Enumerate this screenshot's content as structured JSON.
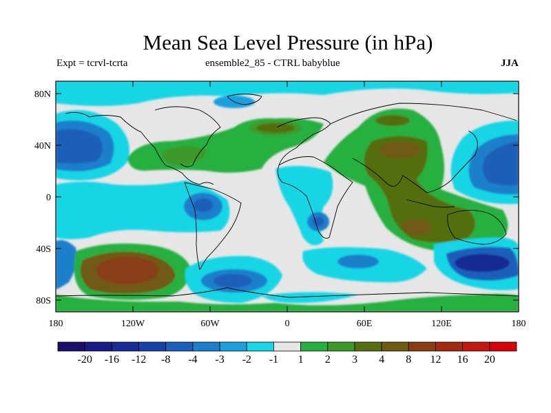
{
  "title": "Mean Sea Level Pressure (in hPa)",
  "subtitle_left": "Expt = tcrvl-tcrta",
  "subtitle_center": "ensemble2_85 - CTRL babyblue",
  "season": "JJA",
  "lat_labels": [
    "80N",
    "40N",
    "0",
    "40S",
    "80S"
  ],
  "lon_labels": [
    "180",
    "120W",
    "60W",
    "0",
    "60E",
    "120E",
    "180"
  ],
  "colorbar": {
    "labels": [
      "-20",
      "-16",
      "-12",
      "-8",
      "-4",
      "-3",
      "-2",
      "-1",
      "1",
      "2",
      "3",
      "4",
      "8",
      "12",
      "16",
      "20"
    ],
    "colors": [
      "#1a0f6b",
      "#1c1b83",
      "#192c95",
      "#1641a8",
      "#1a5fbb",
      "#1b7fcc",
      "#1ba0dd",
      "#17d6e6",
      "#e6e6e6",
      "#27b041",
      "#3c9a2b",
      "#556e10",
      "#6f5a12",
      "#8a3c12",
      "#a32a10",
      "#c21a10",
      "#d8000a"
    ]
  }
}
